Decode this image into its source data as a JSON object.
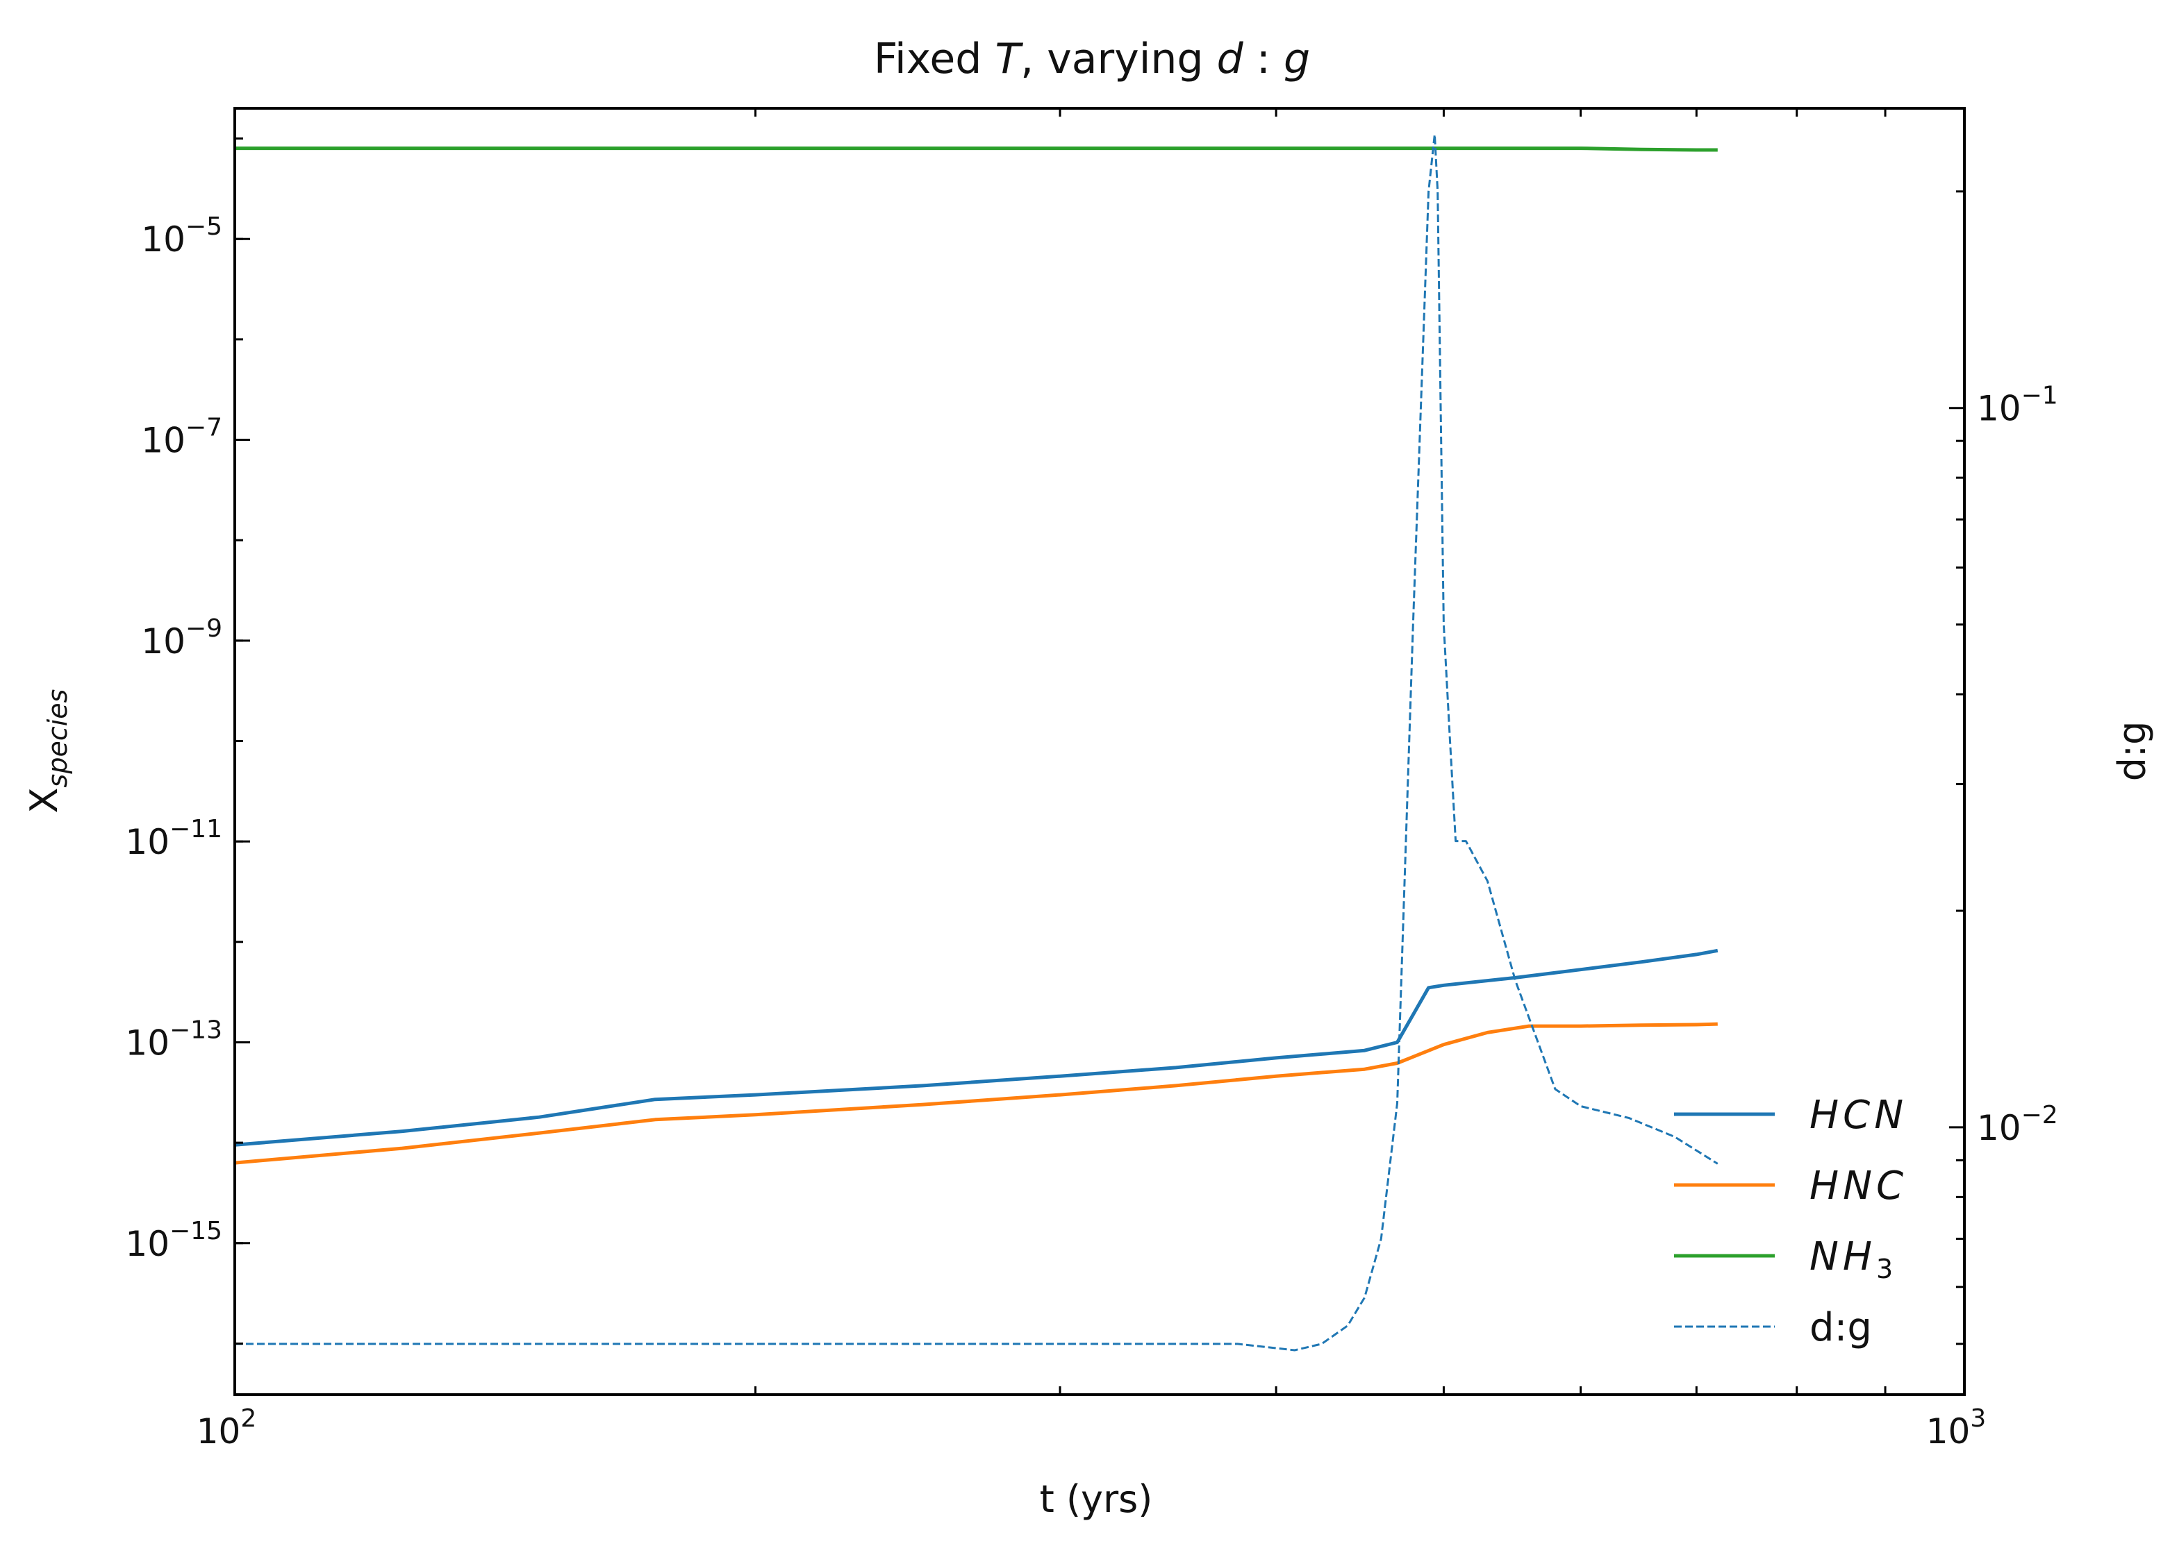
{
  "chart_data": {
    "type": "line",
    "title": "Fixed T, varying d : g",
    "xlabel": "t (yrs)",
    "ylabel": "X_species",
    "y2label": "d:g",
    "xscale": "log",
    "yscale": "log",
    "y2scale": "log",
    "xlim": [
      100,
      1000
    ],
    "ylim": [
      3.1e-17,
      0.0002
    ],
    "y2lim": [
      0.00425,
      0.261
    ],
    "x_ticks": [
      {
        "value": 100,
        "base": "10",
        "exp": "2"
      },
      {
        "value": 1000,
        "base": "10",
        "exp": "3"
      }
    ],
    "y_ticks": [
      {
        "value": 1e-05,
        "base": "10",
        "exp": "−5"
      },
      {
        "value": 1e-07,
        "base": "10",
        "exp": "−7"
      },
      {
        "value": 1e-09,
        "base": "10",
        "exp": "−9"
      },
      {
        "value": 1e-11,
        "base": "10",
        "exp": "−11"
      },
      {
        "value": 1e-13,
        "base": "10",
        "exp": "−13"
      },
      {
        "value": 1e-15,
        "base": "10",
        "exp": "−15"
      }
    ],
    "y2_ticks": [
      {
        "value": 0.1,
        "base": "10",
        "exp": "−1"
      },
      {
        "value": 0.01,
        "base": "10",
        "exp": "−2"
      }
    ],
    "grid": false,
    "legend_position": "lower-right",
    "series": [
      {
        "name": "HCN",
        "label_main": "HCN",
        "label_sub": "",
        "axis": "left",
        "style": "solid",
        "color": "#1f77b4",
        "x": [
          100,
          125,
          150,
          175,
          200,
          250,
          300,
          350,
          400,
          450,
          470,
          490,
          500,
          550,
          600,
          650,
          700,
          720
        ],
        "y": [
          9.5e-15,
          1.3e-14,
          1.8e-14,
          2.7e-14,
          3e-14,
          3.7e-14,
          4.6e-14,
          5.6e-14,
          7e-14,
          8.3e-14,
          1e-13,
          3.5e-13,
          3.7e-13,
          4.4e-13,
          5.3e-13,
          6.3e-13,
          7.5e-13,
          8.2e-13
        ]
      },
      {
        "name": "HNC",
        "label_main": "HNC",
        "label_sub": "",
        "axis": "left",
        "style": "solid",
        "color": "#ff7f0e",
        "x": [
          100,
          125,
          150,
          175,
          200,
          250,
          300,
          350,
          400,
          450,
          470,
          500,
          530,
          560,
          600,
          650,
          700,
          720
        ],
        "y": [
          6.3e-15,
          8.8e-15,
          1.25e-14,
          1.7e-14,
          1.9e-14,
          2.4e-14,
          3e-14,
          3.7e-14,
          4.6e-14,
          5.4e-14,
          6.2e-14,
          9.5e-14,
          1.25e-13,
          1.45e-13,
          1.45e-13,
          1.48e-13,
          1.5e-13,
          1.52e-13
        ]
      },
      {
        "name": "NH3",
        "label_main": "NH",
        "label_sub": "3",
        "axis": "left",
        "style": "solid",
        "color": "#2ca02c",
        "x": [
          100,
          200,
          300,
          400,
          500,
          600,
          650,
          700,
          720
        ],
        "y": [
          8e-05,
          8e-05,
          8e-05,
          8e-05,
          8e-05,
          8e-05,
          7.8e-05,
          7.7e-05,
          7.7e-05
        ]
      },
      {
        "name": "d:g",
        "label_main": "d:g",
        "label_sub": "",
        "axis": "right",
        "style": "dashed",
        "color": "#1f77b4",
        "x": [
          100,
          200,
          300,
          380,
          410,
          425,
          440,
          450,
          460,
          470,
          480,
          490,
          494,
          496,
          500,
          504,
          508,
          515,
          530,
          550,
          580,
          600,
          640,
          680,
          720
        ],
        "y": [
          0.005,
          0.005,
          0.005,
          0.005,
          0.0049,
          0.005,
          0.0053,
          0.0058,
          0.007,
          0.0108,
          0.05,
          0.2,
          0.24,
          0.2,
          0.05,
          0.035,
          0.025,
          0.025,
          0.022,
          0.016,
          0.0113,
          0.0107,
          0.0103,
          0.0097,
          0.0089
        ]
      }
    ]
  }
}
